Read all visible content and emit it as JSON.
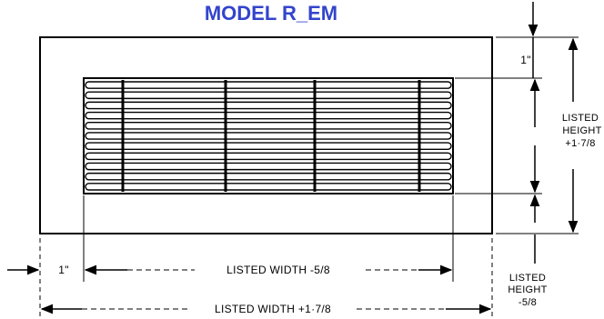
{
  "title": "MODEL R_EM",
  "colors": {
    "title": "#3344cc",
    "ink": "#000000"
  },
  "dimensions": {
    "margin_top": "1\"",
    "margin_left": "1\"",
    "listed_height_outer": {
      "line1": "LISTED",
      "line2": "HEIGHT",
      "line3": "+1·7/8"
    },
    "listed_height_inner": {
      "line1": "LISTED",
      "line2": "HEIGHT",
      "line3": "-5/8"
    },
    "listed_width_inner": "LISTED WIDTH -5/8",
    "listed_width_outer": "LISTED WIDTH +1·7/8"
  }
}
